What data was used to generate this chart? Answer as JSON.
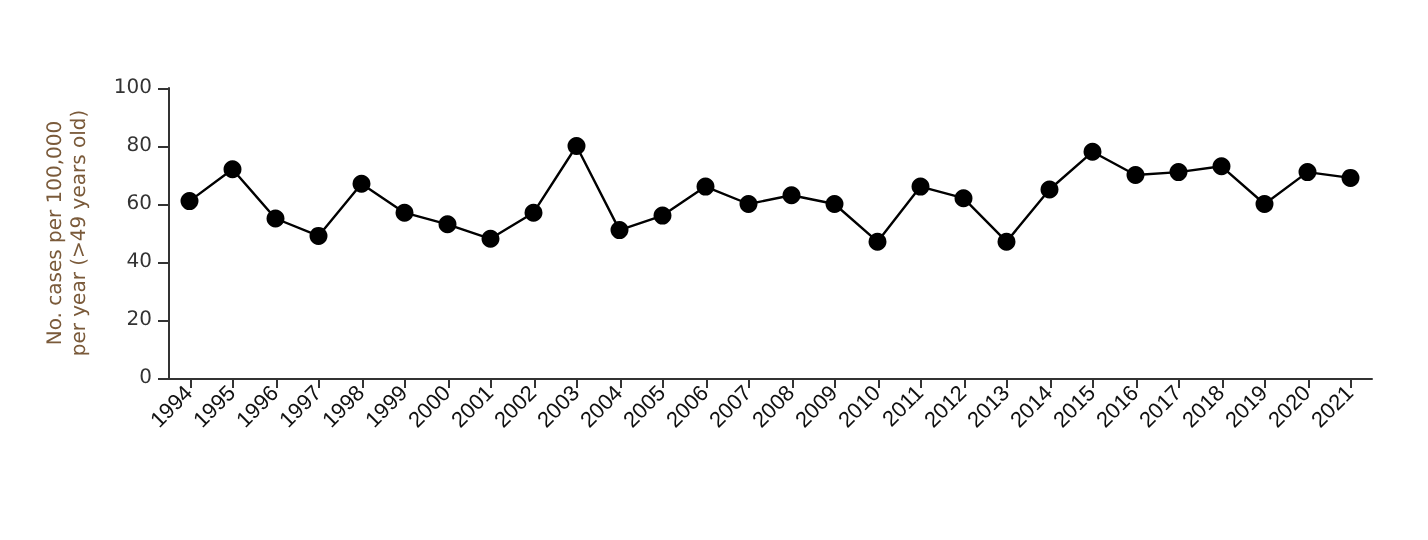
{
  "chart_data": {
    "type": "line",
    "ylabel": "No. cases per 100,000\nper year (>49 years old)",
    "categories": [
      "1994",
      "1995",
      "1996",
      "1997",
      "1998",
      "1999",
      "2000",
      "2001",
      "2002",
      "2003",
      "2004",
      "2005",
      "2006",
      "2007",
      "2008",
      "2009",
      "2010",
      "2011",
      "2012",
      "2013",
      "2014",
      "2015",
      "2016",
      "2017",
      "2018",
      "2019",
      "2020",
      "2021"
    ],
    "series": [
      {
        "color": "#000000",
        "values": [
          61,
          72,
          55,
          49,
          67,
          57,
          53,
          48,
          57,
          80,
          51,
          56,
          66,
          60,
          63,
          60,
          47,
          66,
          62,
          47,
          65,
          78,
          70,
          71,
          73,
          60,
          71,
          69
        ]
      }
    ],
    "ylim": [
      0,
      100
    ],
    "yticks": [
      0,
      20,
      40,
      60,
      80,
      100
    ],
    "grid": false,
    "marker": "circle",
    "line_style": "solid"
  }
}
